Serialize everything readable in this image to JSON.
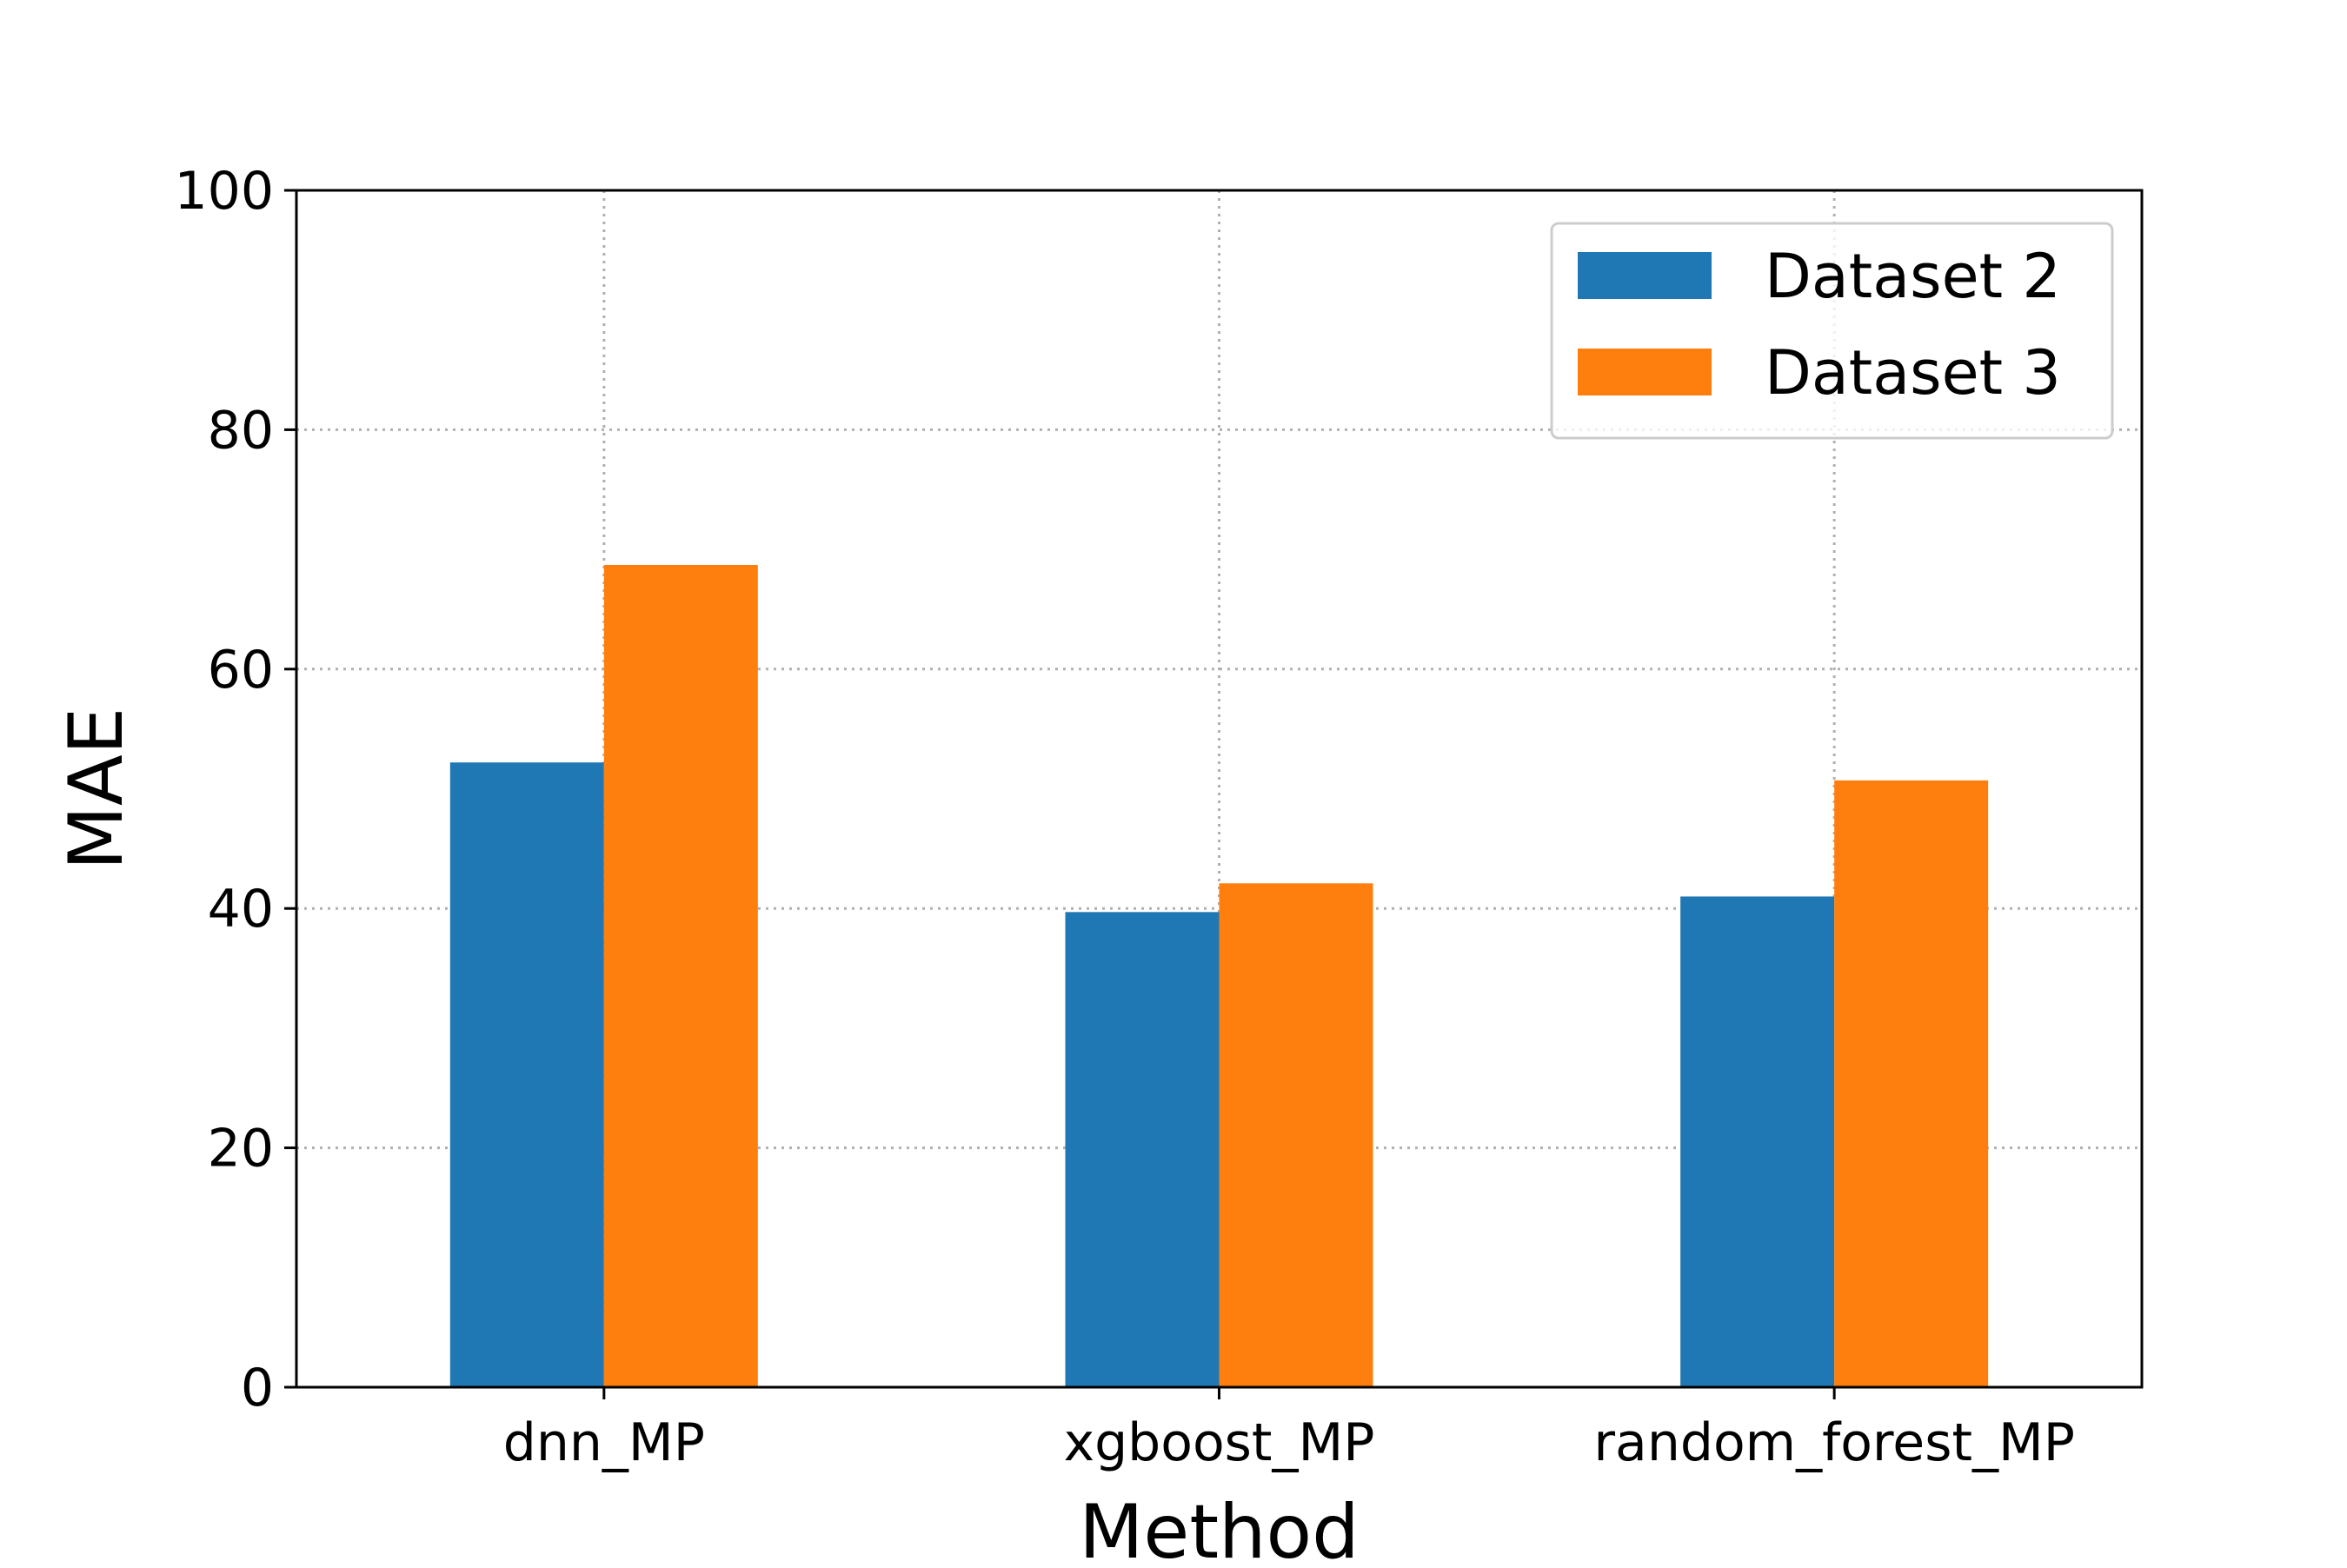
{
  "chart_data": {
    "type": "bar",
    "categories": [
      "dnn_MP",
      "xgboost_MP",
      "random_forest_MP"
    ],
    "series": [
      {
        "name": "Dataset 2",
        "values": [
          52.2,
          39.7,
          41.0
        ],
        "color": "#1f77b4"
      },
      {
        "name": "Dataset 3",
        "values": [
          68.7,
          42.1,
          50.7
        ],
        "color": "#ff7f0e"
      }
    ],
    "xlabel": "Method",
    "ylabel": "MAE",
    "ylim": [
      0,
      100
    ],
    "yticks": [
      "0",
      "20",
      "40",
      "60",
      "80",
      "100"
    ],
    "grid": true,
    "legend_position": "top-right"
  }
}
